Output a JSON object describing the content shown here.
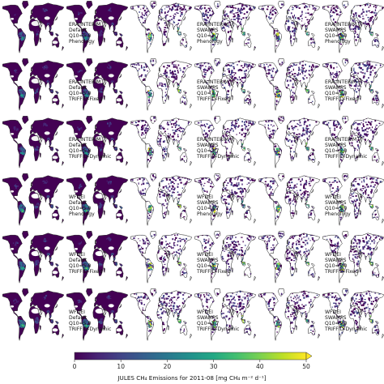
{
  "chart_data": {
    "type": "heatmap",
    "title": "",
    "layout": "6 rows x 6 columns of global wetland methane emission maps; each row holds one configuration shown on two maps, the left panel of the pair carrying the label",
    "rows": [
      {
        "met_data": "ERA-INTERIM",
        "wetland": "Default",
        "q10": "Q10=5.0",
        "vegetation": "Phenology"
      },
      {
        "met_data": "ERA-INTERIM",
        "wetland": "Default",
        "q10": "Q10=5.0",
        "vegetation": "TRIFFID-Fixed"
      },
      {
        "met_data": "ERA-INTERIM",
        "wetland": "Default",
        "q10": "Q10=5.0",
        "vegetation": "TRIFFID-Dynamic"
      },
      {
        "met_data": "WFDEI",
        "wetland": "Default",
        "q10": "Q10=5.0",
        "vegetation": "Phenology"
      },
      {
        "met_data": "WFDEI",
        "wetland": "Default",
        "q10": "Q10=5.0",
        "vegetation": "TRIFFID-Fixed"
      },
      {
        "met_data": "WFDEI",
        "wetland": "Default",
        "q10": "Q10=5.0",
        "vegetation": "TRIFFID-Dynamic"
      }
    ],
    "columns_group2": [
      {
        "wetland": "SWAMPS",
        "q10": "Q10=3.7"
      },
      {
        "wetland": "SWAMPS",
        "q10": "Q10=5.0"
      }
    ],
    "colorbar": {
      "label": "JULES CH₄ Emissions for 2011-08 [mg CH₄ m⁻² d⁻¹]",
      "min": 0,
      "max": 50,
      "ticks": [
        0,
        10,
        20,
        30,
        40,
        50
      ],
      "extend": "max",
      "colormap": "viridis"
    }
  },
  "colors": {
    "ocean": "#ffffff",
    "land_low": "#440154",
    "no_data_land": "#ffffff",
    "high": "#fde725",
    "mid": "#21918c"
  }
}
